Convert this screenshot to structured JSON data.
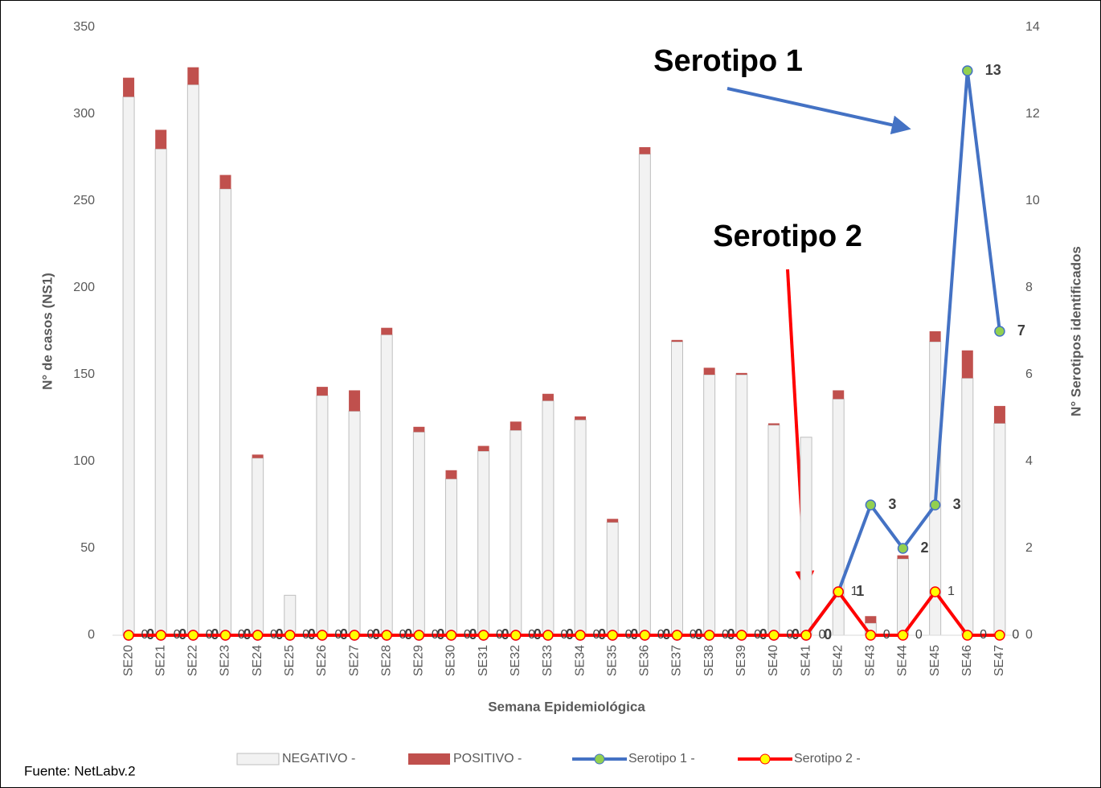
{
  "chart_data": {
    "type": "bar-line",
    "categories": [
      "SE20",
      "SE21",
      "SE22",
      "SE23",
      "SE24",
      "SE25",
      "SE26",
      "SE27",
      "SE28",
      "SE29",
      "SE30",
      "SE31",
      "SE32",
      "SE33",
      "SE34",
      "SE35",
      "SE36",
      "SE37",
      "SE38",
      "SE39",
      "SE40",
      "SE41",
      "SE42",
      "SE43",
      "SE44",
      "SE45",
      "SE46",
      "SE47"
    ],
    "series": [
      {
        "name": "NEGATIVO -",
        "type": "bar",
        "color": "#f2f2f2",
        "stroke": "#bfbfbf",
        "values": [
          310,
          280,
          317,
          257,
          102,
          23,
          138,
          129,
          173,
          117,
          90,
          106,
          118,
          135,
          124,
          65,
          277,
          169,
          150,
          150,
          121,
          114,
          136,
          7,
          44,
          169,
          148,
          122
        ]
      },
      {
        "name": "POSITIVO -",
        "type": "bar",
        "color": "#c0504d",
        "values": [
          11,
          11,
          10,
          8,
          2,
          0,
          5,
          12,
          4,
          3,
          5,
          3,
          5,
          4,
          2,
          2,
          4,
          1,
          4,
          1,
          1,
          0,
          5,
          4,
          2,
          6,
          16,
          10
        ]
      },
      {
        "name": "Serotipo 1 -",
        "type": "line",
        "axis": "y2",
        "color": "#4472c4",
        "marker_color": "#92d050",
        "values": [
          0,
          0,
          0,
          0,
          0,
          0,
          0,
          0,
          0,
          0,
          0,
          0,
          0,
          0,
          0,
          0,
          0,
          0,
          0,
          0,
          0,
          0,
          1,
          3,
          2,
          3,
          13,
          7
        ]
      },
      {
        "name": "Serotipo 2 -",
        "type": "line",
        "axis": "y2",
        "color": "#ff0000",
        "marker_color": "#ffff00",
        "values": [
          0,
          0,
          0,
          0,
          0,
          0,
          0,
          0,
          0,
          0,
          0,
          0,
          0,
          0,
          0,
          0,
          0,
          0,
          0,
          0,
          0,
          0,
          1,
          0,
          0,
          1,
          0,
          0
        ]
      }
    ],
    "ylim": [
      0,
      350
    ],
    "yticks": [
      0,
      50,
      100,
      150,
      200,
      250,
      300,
      350
    ],
    "y2lim": [
      0,
      14
    ],
    "y2ticks": [
      0,
      2,
      4,
      6,
      8,
      10,
      12,
      14
    ],
    "xlabel": "Semana Epidemiológica",
    "ylabel": "N° de casos (NS1)",
    "y2label": "N° Serotipos identificados",
    "annotations": [
      {
        "text": "Serotipo 1"
      },
      {
        "text": "Serotipo 2"
      }
    ],
    "source": "Fuente: NetLabv.2",
    "grid": false
  }
}
